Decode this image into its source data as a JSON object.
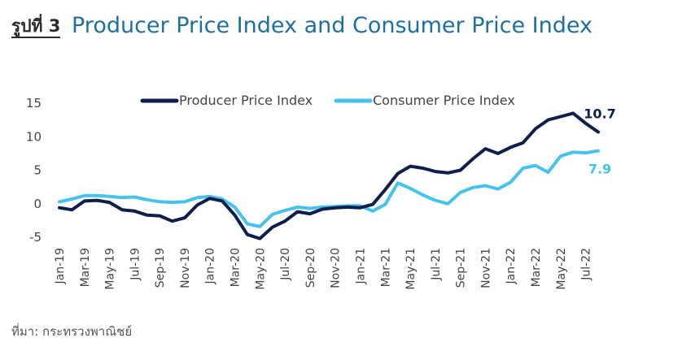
{
  "figure_label": "รูปที่ 3",
  "title": "Producer Price Index and Consumer Price Index",
  "source": "ที่มา: กระทรวงพาณิชย์",
  "chart_data": {
    "type": "line",
    "title": "Producer Price Index and Consumer Price Index",
    "xlabel": "",
    "ylabel": "",
    "ylim": [
      -5,
      15
    ],
    "yticks": [
      15,
      10,
      5,
      0,
      -5
    ],
    "x_tick_labels": [
      "Jan-19",
      "Mar-19",
      "May-19",
      "Jul-19",
      "Sep-19",
      "Nov-19",
      "Jan-20",
      "Mar-20",
      "May-20",
      "Jul-20",
      "Sep-20",
      "Nov-20",
      "Jan-21",
      "Mar-21",
      "May-21",
      "Jul-21",
      "Sep-21",
      "Nov-21",
      "Jan-22",
      "Mar-22",
      "May-22",
      "Jul-22"
    ],
    "x": [
      "Jan-19",
      "Feb-19",
      "Mar-19",
      "Apr-19",
      "May-19",
      "Jun-19",
      "Jul-19",
      "Aug-19",
      "Sep-19",
      "Oct-19",
      "Nov-19",
      "Dec-19",
      "Jan-20",
      "Feb-20",
      "Mar-20",
      "Apr-20",
      "May-20",
      "Jun-20",
      "Jul-20",
      "Aug-20",
      "Sep-20",
      "Oct-20",
      "Nov-20",
      "Dec-20",
      "Jan-21",
      "Feb-21",
      "Mar-21",
      "Apr-21",
      "May-21",
      "Jun-21",
      "Jul-21",
      "Aug-21",
      "Sep-21",
      "Oct-21",
      "Nov-21",
      "Dec-21",
      "Jan-22",
      "Feb-22",
      "Mar-22",
      "Apr-22",
      "May-22",
      "Jun-22",
      "Jul-22",
      "Aug-22"
    ],
    "grid": false,
    "legend_position": "top",
    "series": [
      {
        "name": "Producer Price Index",
        "color": "#0d1f4a",
        "end_label": "10.7",
        "values": [
          -0.6,
          -0.9,
          0.4,
          0.5,
          0.2,
          -0.9,
          -1.1,
          -1.7,
          -1.8,
          -2.6,
          -2.1,
          -0.2,
          0.8,
          0.4,
          -1.7,
          -4.6,
          -5.2,
          -3.5,
          -2.6,
          -1.2,
          -1.5,
          -0.8,
          -0.6,
          -0.5,
          -0.6,
          -0.1,
          2.1,
          4.5,
          5.6,
          5.3,
          4.8,
          4.6,
          5.0,
          6.7,
          8.2,
          7.5,
          8.4,
          9.1,
          11.2,
          12.5,
          13.0,
          13.5,
          12.0,
          10.7
        ]
      },
      {
        "name": "Consumer Price Index",
        "color": "#45c3ec",
        "end_label": "7.9",
        "values": [
          0.3,
          0.7,
          1.2,
          1.2,
          1.1,
          0.9,
          1.0,
          0.6,
          0.3,
          0.2,
          0.3,
          0.9,
          1.1,
          0.7,
          -0.5,
          -3.0,
          -3.4,
          -1.6,
          -1.0,
          -0.5,
          -0.7,
          -0.5,
          -0.4,
          -0.3,
          -0.3,
          -1.1,
          -0.1,
          3.1,
          2.3,
          1.3,
          0.5,
          0.0,
          1.7,
          2.4,
          2.7,
          2.2,
          3.2,
          5.3,
          5.7,
          4.7,
          7.1,
          7.7,
          7.6,
          7.9
        ]
      }
    ]
  }
}
